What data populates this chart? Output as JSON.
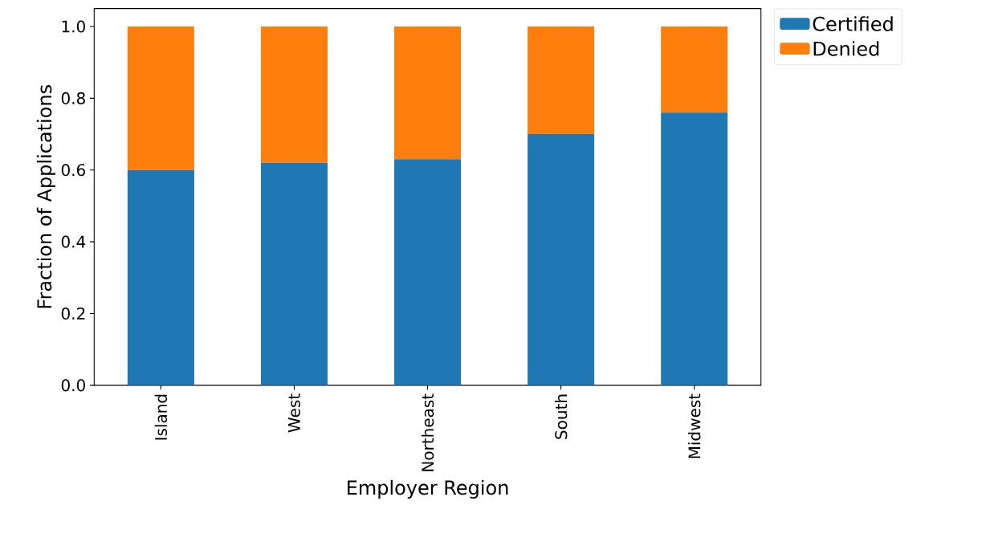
{
  "chart_data": {
    "type": "bar",
    "stacked": true,
    "xlabel": "Employer Region",
    "ylabel": "Fraction of Applications",
    "categories": [
      "Island",
      "West",
      "Northeast",
      "South",
      "Midwest"
    ],
    "series": [
      {
        "name": "Certified",
        "color": "#1f77b4",
        "values": [
          0.6,
          0.62,
          0.63,
          0.7,
          0.76
        ]
      },
      {
        "name": "Denied",
        "color": "#ff7f0e",
        "values": [
          0.4,
          0.38,
          0.37,
          0.3,
          0.24
        ]
      }
    ],
    "ylim": [
      0,
      1.05
    ],
    "yticks": [
      {
        "value": 0,
        "label": "0.0"
      },
      {
        "value": 0.2,
        "label": "0.2"
      },
      {
        "value": 0.4,
        "label": "0.4"
      },
      {
        "value": 0.6,
        "label": "0.6"
      },
      {
        "value": 0.8,
        "label": "0.8"
      },
      {
        "value": 1.0,
        "label": "1.0"
      }
    ],
    "grid": false,
    "legend": "top right"
  }
}
